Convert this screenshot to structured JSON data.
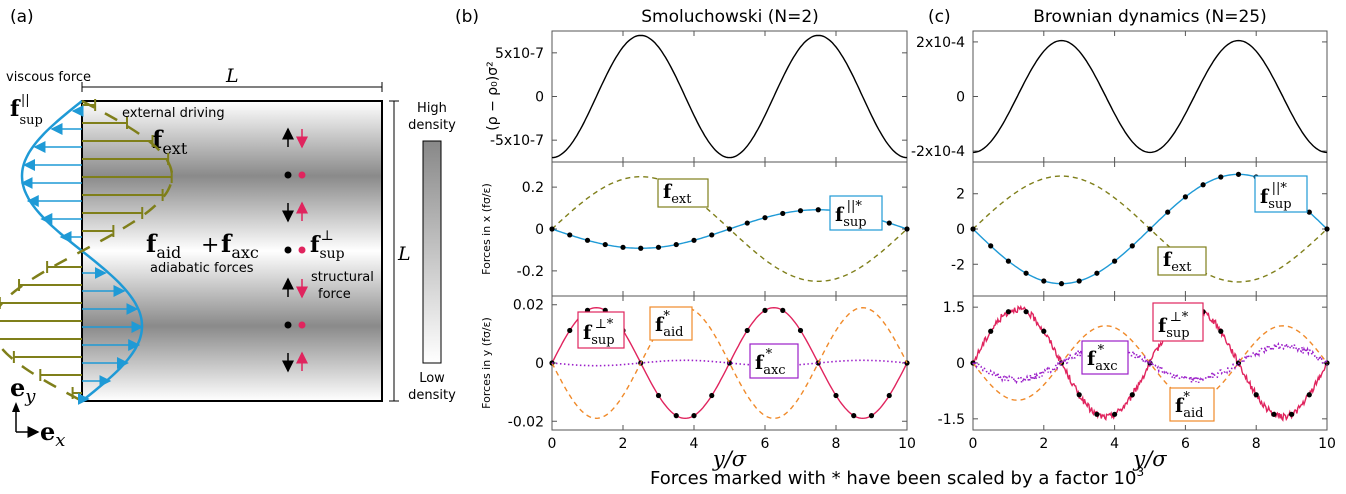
{
  "figure": {
    "caption": "Forces marked with * have been scaled by a factor 10",
    "caption_exp": "3"
  },
  "panel_a": {
    "label": "(a)",
    "viscous_force": "viscous force",
    "external_driving": "external driving",
    "adiabatic_forces": "adiabatic forces",
    "structural_force_1": "structural",
    "structural_force_2": "force",
    "L": "L",
    "high_density_1": "High",
    "high_density_2": "density",
    "low_density_1": "Low",
    "low_density_2": "density",
    "f_sup_par": {
      "base": "f",
      "sub": "sup",
      "sup": "||"
    },
    "f_ext": {
      "base": "f",
      "sub": "ext"
    },
    "f_aid": {
      "base": "f",
      "sub": "aid"
    },
    "plus": "+",
    "f_axc": {
      "base": "f",
      "sub": "axc"
    },
    "f_sup_perp": {
      "base": "f",
      "sub": "sup",
      "sup": "⊥"
    },
    "e_y": {
      "base": "e",
      "sub": "y"
    },
    "e_x": {
      "base": "e",
      "sub": "x"
    },
    "colors": {
      "olive": "#7f7f1a",
      "blue": "#1f9ad6",
      "red": "#e0245e",
      "black": "#000000"
    }
  },
  "panel_b": {
    "label": "(b)",
    "title": "Smoluchowski (N=2)",
    "xlabel": "y/σ",
    "ylabel_top": "(ρ − ρ₀)σ²",
    "ylabel_mid": "Forces in x (fσ/ε)",
    "ylabel_bot": "Forces in y (fσ/ε)",
    "top_ticks": [
      "5x10-7",
      "0",
      "-5x10-7"
    ],
    "mid_ticks": [
      "0.2",
      "0",
      "-0.2"
    ],
    "bot_ticks": [
      "0.02",
      "0",
      "-0.02"
    ],
    "x_ticks": [
      "0",
      "2",
      "4",
      "6",
      "8",
      "10"
    ],
    "labels": {
      "fext": {
        "base": "f",
        "sub": "ext"
      },
      "fsup_par": {
        "base": "f",
        "sub": "sup",
        "sup": "||*"
      },
      "fsup_perp": {
        "base": "f",
        "sub": "sup",
        "sup": "⊥*"
      },
      "faid": {
        "base": "f",
        "sub": "aid",
        "sup": "*"
      },
      "faxc": {
        "base": "f",
        "sub": "axc",
        "sup": "*"
      }
    }
  },
  "panel_c": {
    "label": "(c)",
    "title": "Brownian dynamics (N=25)",
    "xlabel": "y/σ",
    "top_ticks": [
      "2x10-4",
      "0",
      "-2x10-4"
    ],
    "mid_ticks": [
      "2",
      "0",
      "-2"
    ],
    "bot_ticks": [
      "1.5",
      "0",
      "-1.5"
    ],
    "x_ticks": [
      "0",
      "2",
      "4",
      "6",
      "8",
      "10"
    ],
    "labels": {
      "fext": {
        "base": "f",
        "sub": "ext"
      },
      "fsup_par": {
        "base": "f",
        "sub": "sup",
        "sup": "||*"
      },
      "fsup_perp": {
        "base": "f",
        "sub": "sup",
        "sup": "⊥*"
      },
      "faid": {
        "base": "f",
        "sub": "aid",
        "sup": "*"
      },
      "faxc": {
        "base": "f",
        "sub": "axc",
        "sup": "*"
      }
    }
  },
  "chart_data": [
    {
      "type": "line",
      "panel": "b-top",
      "xlim": [
        0,
        10
      ],
      "ylim": [
        -7.5e-07,
        7.5e-07
      ],
      "series": [
        {
          "values_formula": "-7e-7*cos(2*pi*y/5)",
          "color": "#000000"
        }
      ]
    },
    {
      "type": "line",
      "panel": "b-mid",
      "xlim": [
        0,
        10
      ],
      "ylim": [
        -0.32,
        0.32
      ],
      "series": [
        {
          "name": "f_ext",
          "values_formula": "0.25*sin(2*pi*y/10)",
          "color": "#7f7f1a",
          "style": "dashed"
        },
        {
          "name": "f_sup||*",
          "values_formula": "-0.092*sin(2*pi*y/10)",
          "color": "#1f9ad6",
          "markers": "black dots"
        }
      ]
    },
    {
      "type": "line",
      "panel": "b-bot",
      "xlim": [
        0,
        10
      ],
      "ylim": [
        -0.023,
        0.023
      ],
      "series": [
        {
          "name": "f_sup⊥*",
          "values_formula": "0.019*sin(2*pi*y/5)",
          "color": "#e0245e",
          "markers": "black dots"
        },
        {
          "name": "f_aid*",
          "values_formula": "-0.019*sin(2*pi*y/5)",
          "color": "#f08a2a",
          "style": "dashed"
        },
        {
          "name": "f_axc*",
          "values_formula": "~0",
          "color": "#9b1fc9",
          "style": "dotted"
        }
      ]
    },
    {
      "type": "line",
      "panel": "c-top",
      "xlim": [
        0,
        10
      ],
      "ylim": [
        -0.00024,
        0.00024
      ],
      "series": [
        {
          "values_formula": "-2.05e-4*cos(2*pi*y/5)",
          "color": "#000000"
        }
      ]
    },
    {
      "type": "line",
      "panel": "c-mid",
      "xlim": [
        0,
        10
      ],
      "ylim": [
        -3.8,
        3.8
      ],
      "series": [
        {
          "name": "f_ext",
          "values_formula": "3*sin(2*pi*y/10)",
          "color": "#7f7f1a",
          "style": "dashed"
        },
        {
          "name": "f_sup||*",
          "values_formula": "-3.1*sin(2*pi*y/10)",
          "color": "#1f9ad6",
          "markers": "black dots"
        }
      ]
    },
    {
      "type": "line",
      "panel": "c-bot",
      "xlim": [
        0,
        10
      ],
      "ylim": [
        -1.8,
        1.8
      ],
      "series": [
        {
          "name": "f_sup⊥*",
          "values_formula": "1.45*sin(2*pi*y/5)",
          "color": "#e0245e",
          "markers": "black dots",
          "noisy": true
        },
        {
          "name": "f_aid*",
          "values_formula": "-1.0*sin(2*pi*y/5)",
          "color": "#f08a2a",
          "style": "dashed"
        },
        {
          "name": "f_axc*",
          "values_formula": "-0.45*sin(2*pi*y/5)",
          "color": "#9b1fc9",
          "style": "dotted",
          "noisy": true
        }
      ]
    }
  ]
}
